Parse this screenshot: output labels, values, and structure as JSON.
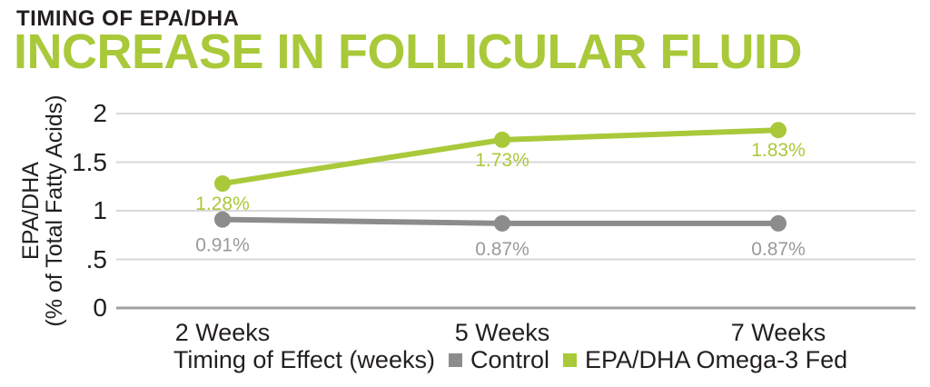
{
  "header": {
    "kicker": "TIMING OF EPA/DHA",
    "title": "INCREASE IN FOLLICULAR FLUID"
  },
  "colors": {
    "green": "#a9c93a",
    "gray": "#8c8c8c",
    "gray_label": "#9a9a9a",
    "grid": "#d9d9d9",
    "axis": "#a0a0a0",
    "text": "#231f20"
  },
  "chart_data": {
    "type": "line",
    "categories": [
      "2 Weeks",
      "5 Weeks",
      "7 Weeks"
    ],
    "series": [
      {
        "name": "Control",
        "color_key": "gray",
        "values": [
          0.91,
          0.87,
          0.87
        ],
        "point_labels": [
          "0.91%",
          "0.87%",
          "0.87%"
        ]
      },
      {
        "name": "EPA/DHA Omega-3 Fed",
        "color_key": "green",
        "values": [
          1.28,
          1.73,
          1.83
        ],
        "point_labels": [
          "1.28%",
          "1.73%",
          "1.83%"
        ]
      }
    ],
    "xlabel": "Timing of Effect (weeks)",
    "ylabel_line1": "EPA/DHA",
    "ylabel_line2": "(% of Total Fatty Acids)",
    "yticks": [
      {
        "value": 0,
        "label": "0"
      },
      {
        "value": 0.5,
        "label": ".5"
      },
      {
        "value": 1,
        "label": "1"
      },
      {
        "value": 1.5,
        "label": "1.5"
      },
      {
        "value": 2,
        "label": "2"
      }
    ],
    "ylim": [
      0,
      2
    ],
    "grid": true,
    "legend_position": "bottom"
  }
}
